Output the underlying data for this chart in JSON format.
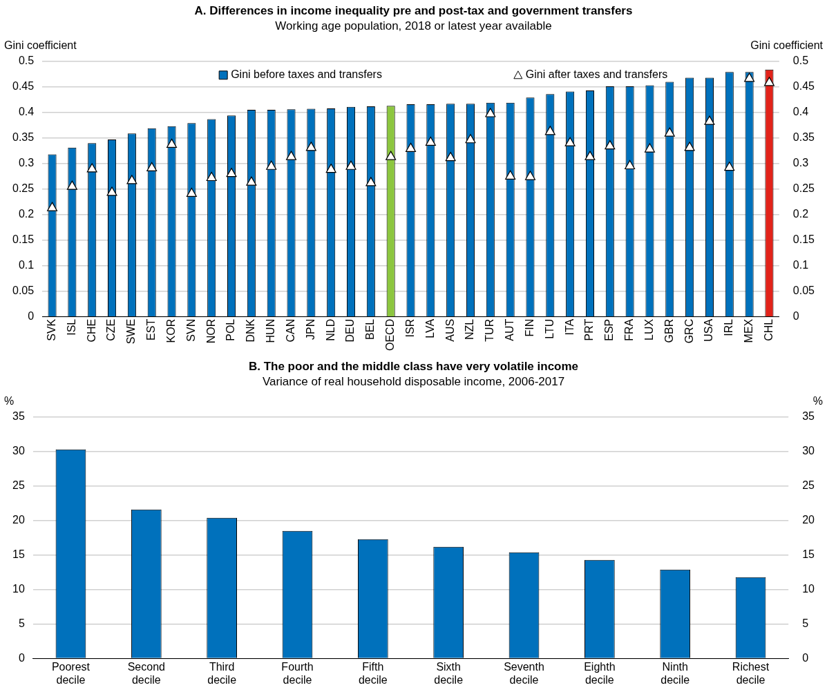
{
  "chart_data": [
    {
      "type": "bar",
      "title": "A. Differences in income inequality pre and post-tax and government transfers",
      "subtitle": "Working age population, 2018 or latest year available",
      "ylabel": "Gini coefficient",
      "y2label": "Gini coefficient",
      "categories": [
        "SVK",
        "ISL",
        "CHE",
        "CZE",
        "SWE",
        "EST",
        "KOR",
        "SVN",
        "NOR",
        "POL",
        "DNK",
        "HUN",
        "CAN",
        "JPN",
        "NLD",
        "DEU",
        "BEL",
        "OECD",
        "ISR",
        "LVA",
        "AUS",
        "NZL",
        "TUR",
        "AUT",
        "FIN",
        "LTU",
        "ITA",
        "PRT",
        "ESP",
        "FRA",
        "LUX",
        "GBR",
        "GRC",
        "USA",
        "IRL",
        "MEX",
        "CHL"
      ],
      "series": [
        {
          "name": "Gini before taxes and transfers",
          "type": "bar",
          "color": "#0071bc",
          "colors": [
            "#0071bc",
            "#0071bc",
            "#0071bc",
            "#0071bc",
            "#0071bc",
            "#0071bc",
            "#0071bc",
            "#0071bc",
            "#0071bc",
            "#0071bc",
            "#0071bc",
            "#0071bc",
            "#0071bc",
            "#0071bc",
            "#0071bc",
            "#0071bc",
            "#0071bc",
            "#8cc63f",
            "#0071bc",
            "#0071bc",
            "#0071bc",
            "#0071bc",
            "#0071bc",
            "#0071bc",
            "#0071bc",
            "#0071bc",
            "#0071bc",
            "#0071bc",
            "#0071bc",
            "#0071bc",
            "#0071bc",
            "#0071bc",
            "#0071bc",
            "#0071bc",
            "#0071bc",
            "#0071bc",
            "#e2231a"
          ],
          "values": [
            0.318,
            0.331,
            0.34,
            0.347,
            0.359,
            0.369,
            0.373,
            0.379,
            0.387,
            0.394,
            0.405,
            0.405,
            0.406,
            0.407,
            0.408,
            0.411,
            0.412,
            0.413,
            0.416,
            0.416,
            0.417,
            0.417,
            0.419,
            0.419,
            0.429,
            0.436,
            0.441,
            0.443,
            0.451,
            0.451,
            0.453,
            0.46,
            0.468,
            0.468,
            0.479,
            0.479,
            0.484
          ]
        },
        {
          "name": "Gini after taxes and transfers",
          "type": "scatter",
          "marker": "triangle",
          "color": "#ffffff",
          "x": [
            "SVK",
            "ISL",
            "CHE",
            "CZE",
            "SWE",
            "EST",
            "KOR",
            "SVN",
            "NOR",
            "POL",
            "DNK",
            "HUN",
            "CAN",
            "JPN",
            "NLD",
            "DEU",
            "BEL",
            "OECD",
            "ISR",
            "LVA",
            "AUS",
            "NZL",
            "TUR",
            "AUT",
            "FIN",
            "LTU",
            "ITA",
            "PRT",
            "ESP",
            "FRA",
            "LUX",
            "GBR",
            "GRC",
            "USA",
            "IRL",
            "MEX",
            "CHL"
          ],
          "values": [
            0.213,
            0.255,
            0.289,
            0.243,
            0.266,
            0.291,
            0.337,
            0.241,
            0.272,
            0.28,
            0.263,
            0.294,
            0.313,
            0.331,
            0.288,
            0.294,
            0.262,
            0.313,
            0.329,
            0.341,
            0.311,
            0.346,
            0.397,
            0.275,
            0.274,
            0.362,
            0.34,
            0.313,
            0.334,
            0.295,
            0.328,
            0.359,
            0.331,
            0.382,
            0.292,
            0.466,
            0.458
          ]
        }
      ],
      "ylim": [
        0,
        0.5
      ],
      "yticks": [
        0,
        0.05,
        0.1,
        0.15,
        0.2,
        0.25,
        0.3,
        0.35,
        0.4,
        0.45,
        0.5
      ],
      "y2lim": [
        0,
        0.5
      ],
      "y2ticks": [
        0,
        0.05,
        0.1,
        0.15,
        0.2,
        0.25,
        0.3,
        0.35,
        0.4,
        0.45,
        0.5
      ],
      "grid": "y",
      "legend": "top"
    },
    {
      "type": "bar",
      "title": "B. The poor and the middle class have very volatile income",
      "subtitle": "Variance of real household disposable income, 2006-2017",
      "ylabel": "%",
      "y2label": "%",
      "categories": [
        "Poorest decile",
        "Second decile",
        "Third decile",
        "Fourth decile",
        "Fifth decile",
        "Sixth decile",
        "Seventh decile",
        "Eighth decile",
        "Ninth decile",
        "Richest decile"
      ],
      "color": "#0071bc",
      "values": [
        30.3,
        21.6,
        20.4,
        18.5,
        17.3,
        16.2,
        15.4,
        14.3,
        12.9,
        11.8
      ],
      "ylim": [
        0,
        35
      ],
      "yticks": [
        0,
        5,
        10,
        15,
        20,
        25,
        30,
        35
      ],
      "y2lim": [
        0,
        35
      ],
      "y2ticks": [
        0,
        5,
        10,
        15,
        20,
        25,
        30,
        35
      ],
      "grid": "y",
      "legend": false
    }
  ]
}
